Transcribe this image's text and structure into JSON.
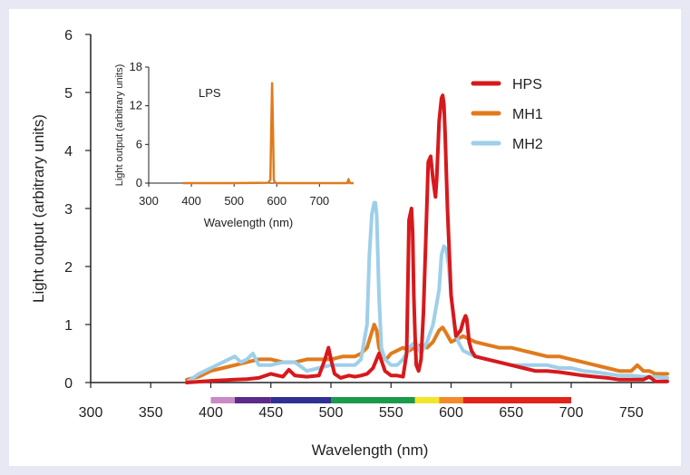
{
  "chart_data": [
    {
      "type": "line",
      "xlabel": "Wavelength (nm)",
      "ylabel": "Light output (arbitrary units)",
      "xlim": [
        300,
        780
      ],
      "ylim": [
        0,
        6
      ],
      "xticks": [
        300,
        350,
        400,
        450,
        500,
        550,
        600,
        650,
        700,
        750
      ],
      "yticks": [
        0,
        1,
        2,
        3,
        4,
        5,
        6
      ],
      "legend_position": "top-right",
      "spectrum_bar": [
        {
          "from": 400,
          "to": 420,
          "color": "#c98ac6"
        },
        {
          "from": 420,
          "to": 450,
          "color": "#5b2a8c"
        },
        {
          "from": 450,
          "to": 500,
          "color": "#2e3192"
        },
        {
          "from": 500,
          "to": 570,
          "color": "#1a9a4a"
        },
        {
          "from": 570,
          "to": 590,
          "color": "#f3e62a"
        },
        {
          "from": 590,
          "to": 610,
          "color": "#f28c28"
        },
        {
          "from": 610,
          "to": 700,
          "color": "#e2231a"
        }
      ],
      "series": [
        {
          "name": "HPS",
          "color": "#d7191c",
          "x": [
            380,
            400,
            420,
            430,
            440,
            450,
            460,
            465,
            470,
            480,
            490,
            495,
            498,
            500,
            503,
            508,
            515,
            520,
            525,
            530,
            535,
            540,
            545,
            550,
            555,
            560,
            563,
            565,
            567,
            568,
            569,
            570,
            571,
            573,
            575,
            577,
            579,
            581,
            583,
            585,
            587,
            588,
            590,
            592,
            593,
            594,
            595,
            597,
            600,
            604,
            608,
            610,
            612,
            613,
            614,
            615,
            617,
            620,
            630,
            640,
            650,
            660,
            670,
            680,
            690,
            700,
            710,
            720,
            730,
            740,
            750,
            760,
            765,
            770,
            780
          ],
          "y": [
            0.0,
            0.03,
            0.05,
            0.06,
            0.08,
            0.15,
            0.1,
            0.22,
            0.12,
            0.1,
            0.12,
            0.4,
            0.6,
            0.4,
            0.15,
            0.08,
            0.12,
            0.1,
            0.12,
            0.15,
            0.25,
            0.5,
            0.2,
            0.12,
            0.12,
            0.1,
            0.5,
            2.8,
            3.0,
            2.6,
            1.5,
            0.8,
            0.3,
            0.2,
            0.4,
            1.2,
            2.5,
            3.8,
            3.9,
            3.5,
            3.2,
            3.5,
            4.5,
            4.9,
            4.95,
            4.8,
            4.3,
            3.0,
            1.5,
            0.8,
            0.9,
            1.05,
            1.15,
            1.1,
            0.9,
            0.7,
            0.55,
            0.45,
            0.4,
            0.35,
            0.3,
            0.25,
            0.2,
            0.2,
            0.18,
            0.15,
            0.12,
            0.1,
            0.08,
            0.05,
            0.05,
            0.05,
            0.1,
            0.02,
            0.02
          ]
        },
        {
          "name": "MH1",
          "color": "#e07b1c",
          "x": [
            380,
            390,
            400,
            410,
            420,
            430,
            440,
            450,
            460,
            470,
            480,
            490,
            500,
            510,
            520,
            525,
            530,
            533,
            536,
            538,
            540,
            543,
            546,
            550,
            555,
            560,
            565,
            570,
            575,
            580,
            585,
            590,
            593,
            596,
            600,
            605,
            610,
            615,
            620,
            630,
            640,
            650,
            660,
            670,
            680,
            690,
            700,
            710,
            720,
            730,
            740,
            750,
            755,
            760,
            765,
            770,
            780
          ],
          "y": [
            0.05,
            0.1,
            0.2,
            0.25,
            0.3,
            0.35,
            0.4,
            0.4,
            0.35,
            0.35,
            0.4,
            0.4,
            0.4,
            0.45,
            0.45,
            0.5,
            0.6,
            0.8,
            1.0,
            0.9,
            0.6,
            0.45,
            0.4,
            0.5,
            0.55,
            0.6,
            0.55,
            0.6,
            0.65,
            0.6,
            0.7,
            0.9,
            0.95,
            0.85,
            0.7,
            0.75,
            0.8,
            0.75,
            0.7,
            0.65,
            0.6,
            0.6,
            0.55,
            0.5,
            0.45,
            0.45,
            0.4,
            0.35,
            0.3,
            0.25,
            0.2,
            0.2,
            0.3,
            0.2,
            0.2,
            0.15,
            0.15
          ]
        },
        {
          "name": "MH2",
          "color": "#9ecfea",
          "x": [
            380,
            390,
            400,
            410,
            420,
            425,
            430,
            435,
            440,
            445,
            450,
            460,
            470,
            480,
            490,
            500,
            510,
            520,
            525,
            530,
            532,
            534,
            536,
            537,
            538,
            539,
            540,
            542,
            545,
            550,
            555,
            560,
            565,
            570,
            575,
            580,
            585,
            590,
            592,
            594,
            596,
            598,
            600,
            603,
            606,
            610,
            620,
            630,
            640,
            650,
            660,
            670,
            680,
            690,
            700,
            710,
            720,
            730,
            740,
            750,
            760,
            770,
            780
          ],
          "y": [
            0.0,
            0.15,
            0.25,
            0.35,
            0.45,
            0.35,
            0.4,
            0.5,
            0.3,
            0.3,
            0.3,
            0.35,
            0.35,
            0.2,
            0.25,
            0.3,
            0.3,
            0.3,
            0.4,
            1.0,
            2.2,
            2.9,
            3.1,
            3.1,
            2.9,
            2.2,
            1.5,
            0.6,
            0.4,
            0.3,
            0.3,
            0.4,
            0.6,
            0.7,
            0.5,
            0.7,
            1.0,
            1.6,
            2.2,
            2.35,
            2.3,
            2.0,
            1.5,
            1.0,
            0.7,
            0.55,
            0.45,
            0.4,
            0.35,
            0.3,
            0.3,
            0.3,
            0.3,
            0.25,
            0.25,
            0.2,
            0.18,
            0.15,
            0.12,
            0.12,
            0.1,
            0.1,
            0.08
          ]
        }
      ]
    },
    {
      "type": "line",
      "title": "LPS",
      "xlabel": "Wavelength (nm)",
      "ylabel": "Light output (arbitrary units)",
      "xlim": [
        300,
        780
      ],
      "ylim": [
        0,
        18
      ],
      "xticks": [
        300,
        400,
        500,
        600,
        700
      ],
      "yticks": [
        0,
        6,
        12,
        18
      ],
      "series": [
        {
          "name": "LPS",
          "color": "#e07b1c",
          "x": [
            380,
            500,
            580,
            585,
            587,
            589,
            591,
            593,
            596,
            600,
            700,
            765,
            768,
            771,
            780
          ],
          "y": [
            0.0,
            0.0,
            0.05,
            0.5,
            8.0,
            15.5,
            9.0,
            0.5,
            0.05,
            0.0,
            0.0,
            0.0,
            0.6,
            0.0,
            0.0
          ]
        }
      ]
    }
  ]
}
